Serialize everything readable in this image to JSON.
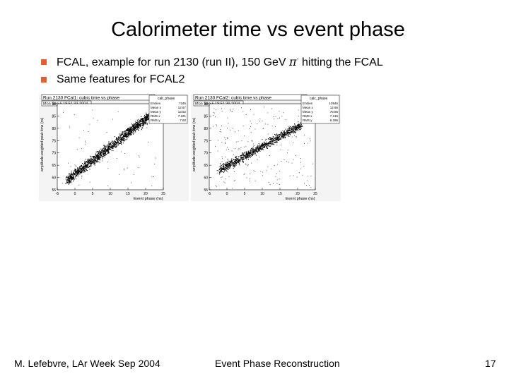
{
  "slide": {
    "title": "Calorimeter time vs event phase",
    "bullets": [
      {
        "before_pi": "FCAL, example for run 2130 (run II), 150 GeV ",
        "pi": "π",
        "sup": "-",
        "after_pi": " hitting the FCAL"
      },
      {
        "text": "Same features for FCAL2"
      }
    ]
  },
  "footer": {
    "left": "M. Lefebvre, LAr Week Sep 2004",
    "center": "Event Phase Reconstruction",
    "page": "17"
  },
  "accent_color": "#e06030",
  "plots": [
    {
      "header": "Run 2130 FCal1: cubic time vs phase",
      "date": "Mon Sep 6 18:51:33 2004",
      "ylabel": "amplitude-weighted peak time (ns)",
      "xlabel": "Event phase (ns)",
      "stats": {
        "name": "calt_phase",
        "rows": [
          [
            "Entries",
            "7245"
          ],
          [
            "Mean x",
            "12.67"
          ],
          [
            "Mean y",
            "13.82"
          ],
          [
            "RMS x",
            "7.221"
          ],
          [
            "RMS y",
            "7.60"
          ]
        ]
      },
      "xticks": [
        "-5",
        "0",
        "5",
        "10",
        "15",
        "20",
        "25"
      ],
      "yticks": [
        "55",
        "60",
        "65",
        "70",
        "75",
        "80",
        "85",
        "90"
      ]
    },
    {
      "header": "Run 2130 FCal2: cubic time vs phase",
      "date": "Mon Sep 6 18:51:39 2004",
      "ylabel": "amplitude-weighted peak time (ns)",
      "xlabel": "Event phase (ns)",
      "stats": {
        "name": "calc_phase",
        "rows": [
          [
            "Entries",
            "13946"
          ],
          [
            "Mean x",
            "12.66"
          ],
          [
            "Mean y",
            "75.86"
          ],
          [
            "RMS x",
            "7.216"
          ],
          [
            "RMS y",
            "6.296"
          ]
        ]
      },
      "xticks": [
        "-5",
        "0",
        "5",
        "10",
        "15",
        "20",
        "25"
      ],
      "yticks": [
        "55",
        "60",
        "65",
        "70",
        "75",
        "80",
        "85",
        "90"
      ]
    }
  ]
}
